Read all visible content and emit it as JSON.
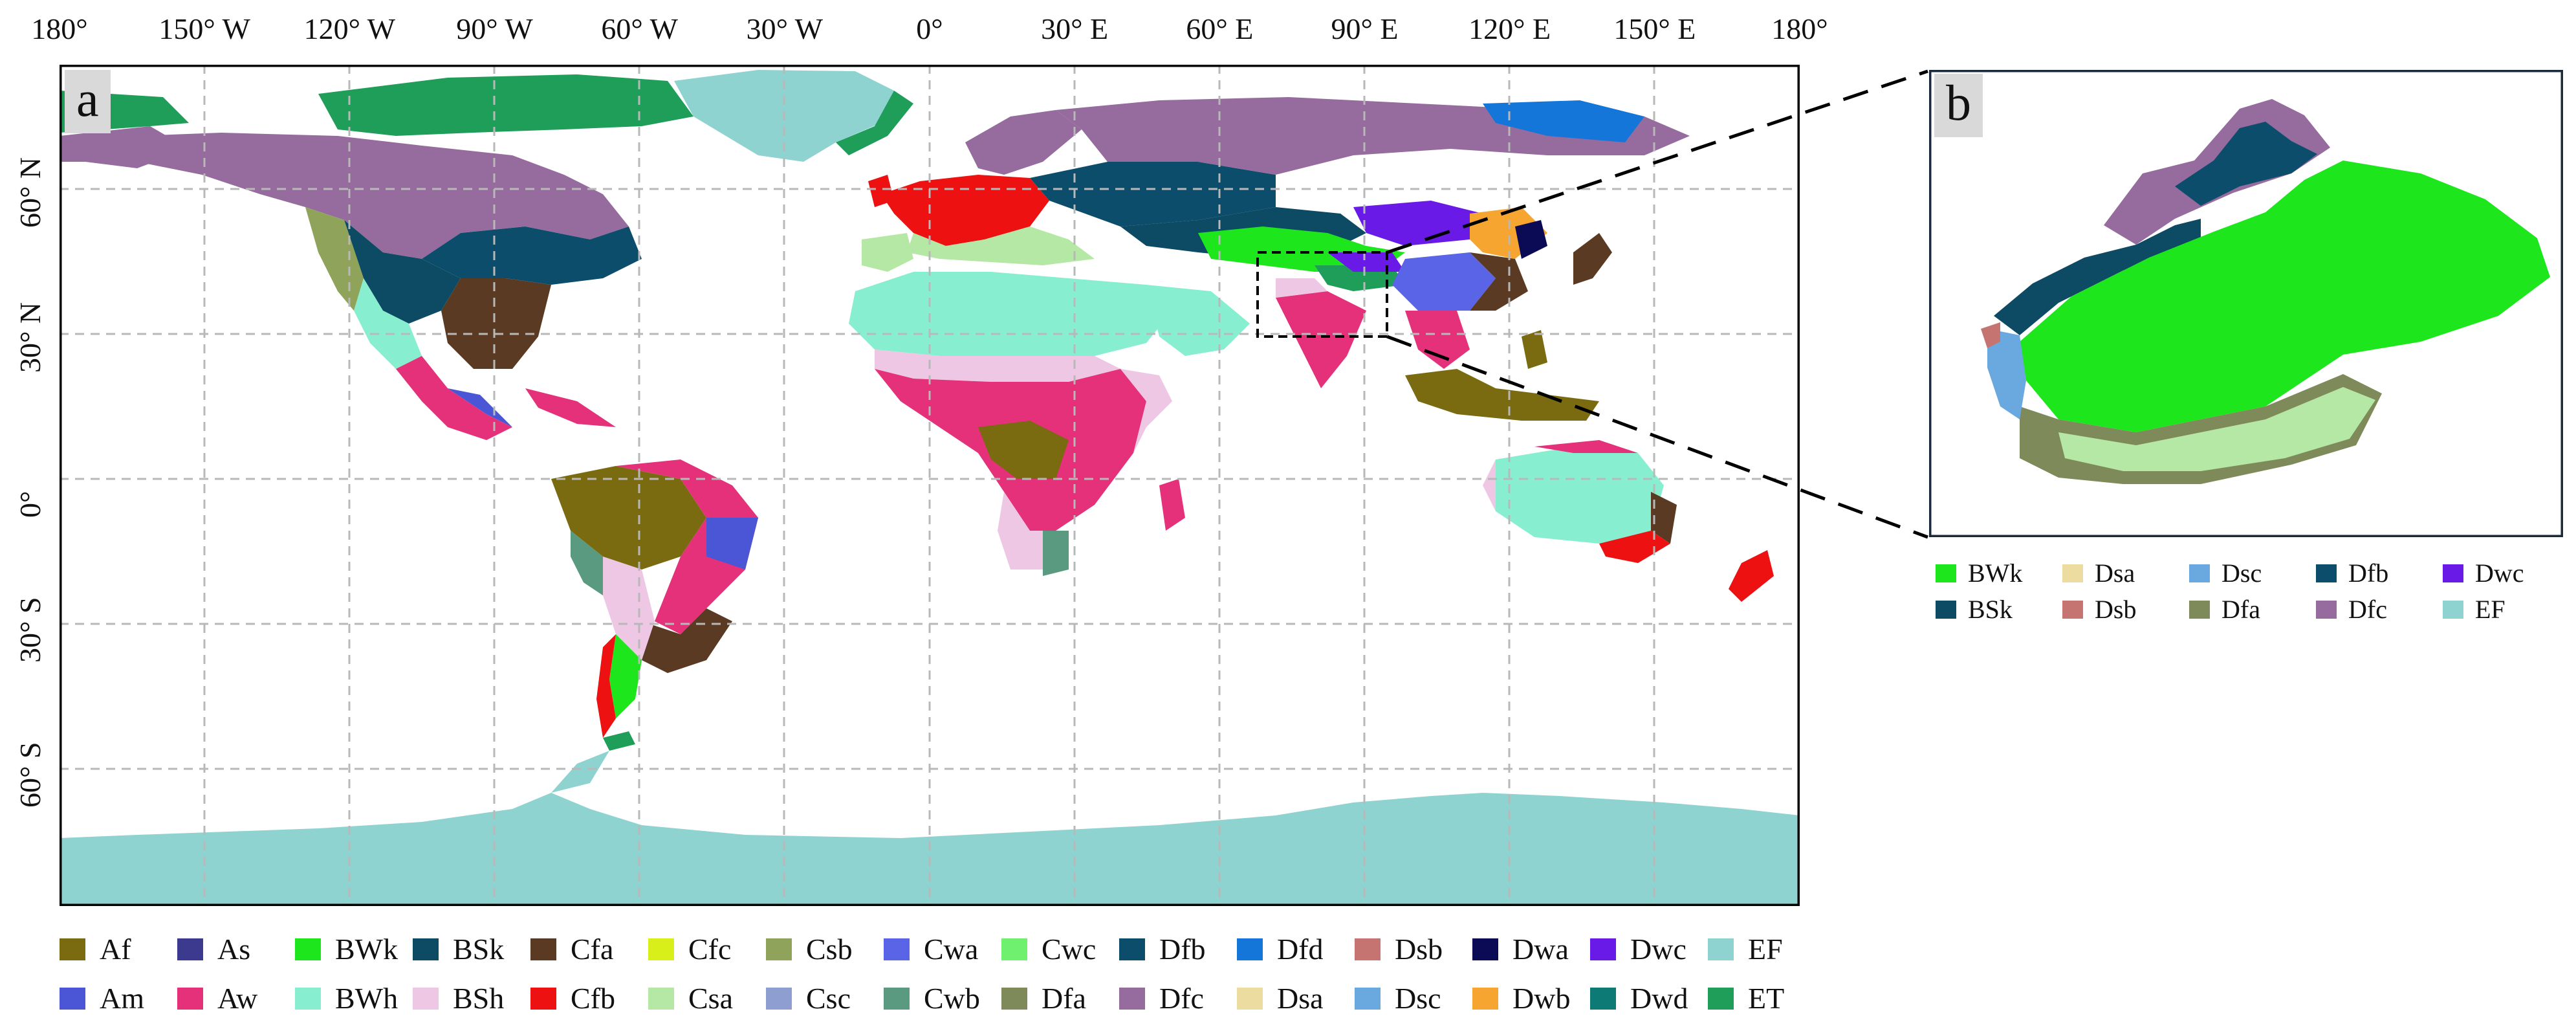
{
  "panel_a": {
    "letter": "a",
    "lon_labels": [
      "180°",
      "150° W",
      "120° W",
      "90° W",
      "60° W",
      "30° W",
      "0°",
      "30° E",
      "60° E",
      "90° E",
      "120° E",
      "150° E",
      "180°"
    ],
    "lat_labels": [
      "60° N",
      "30° N",
      "0°",
      "30° S",
      "60° S"
    ]
  },
  "panel_b": {
    "letter": "b"
  },
  "colors": {
    "Af": "#7a6a10",
    "As": "#3b3a8f",
    "BWk": "#1de61d",
    "BSk": "#0d4a63",
    "Cfa": "#5a3a22",
    "Cfc": "#d9ef1a",
    "Csb": "#8fa45a",
    "Cwa": "#5a64e6",
    "Cwc": "#6ff06f",
    "Dfb": "#0b4d6b",
    "Dfd": "#1576d9",
    "Dsb": "#c67472",
    "Dwa": "#0a0a55",
    "Dwc": "#6a1ae6",
    "EF": "#8fd3d0",
    "Am": "#4a56d6",
    "Aw": "#e5307a",
    "BWh": "#87efcf",
    "BSh": "#eec7e5",
    "Cfb": "#ee1111",
    "Csa": "#b5e8a5",
    "Csc": "#8f9ed0",
    "Cwb": "#5a9a80",
    "Dfa": "#7f8a5a",
    "Dfc": "#966b9e",
    "Dsa": "#ecdca0",
    "Dsc": "#6aa8e0",
    "Dwb": "#f5a530",
    "Dwd": "#0e7a76",
    "ET": "#1f9e5a",
    "ocean": "#ffffff",
    "land_none": "#ffffff"
  },
  "legend_main": [
    [
      "Af",
      "As",
      "BWk",
      "BSk",
      "Cfa",
      "Cfc",
      "Csb",
      "Cwa",
      "Cwc",
      "Dfb",
      "Dfd",
      "Dsb",
      "Dwa",
      "Dwc",
      "EF"
    ],
    [
      "Am",
      "Aw",
      "BWh",
      "BSh",
      "Cfb",
      "Csa",
      "Csc",
      "Cwb",
      "Dfa",
      "Dfc",
      "Dsa",
      "Dsc",
      "Dwb",
      "Dwd",
      "ET"
    ]
  ],
  "legend_b": [
    [
      "BWk",
      "Dsa",
      "Dsc",
      "Dfb",
      "Dwc"
    ],
    [
      "BSk",
      "Dsb",
      "Dfa",
      "Dfc",
      "EF"
    ]
  ]
}
